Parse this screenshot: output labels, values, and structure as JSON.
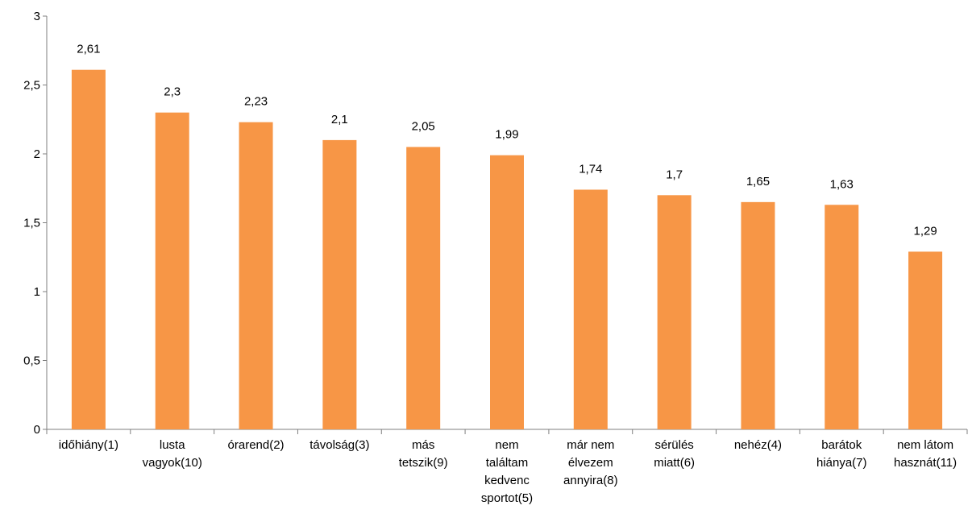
{
  "chart_data": {
    "type": "bar",
    "title": "",
    "xlabel": "",
    "ylabel": "",
    "categories": [
      [
        "időhiány(1)"
      ],
      [
        "lusta",
        "vagyok(10)"
      ],
      [
        "órarend(2)"
      ],
      [
        "távolság(3)"
      ],
      [
        "más",
        "tetszik(9)"
      ],
      [
        "nem",
        "találtam",
        "kedvenc",
        "sportot(5)"
      ],
      [
        "már nem",
        "élvezem",
        "annyira(8)"
      ],
      [
        "sérülés",
        "miatt(6)"
      ],
      [
        "nehéz(4)"
      ],
      [
        "barátok",
        "hiánya(7)"
      ],
      [
        "nem látom",
        "hasznát(11)"
      ]
    ],
    "values": [
      2.61,
      2.3,
      2.23,
      2.1,
      2.05,
      1.99,
      1.74,
      1.7,
      1.65,
      1.63,
      1.29
    ],
    "data_labels": [
      "2,61",
      "2,3",
      "2,23",
      "2,1",
      "2,05",
      "1,99",
      "1,74",
      "1,7",
      "1,65",
      "1,63",
      "1,29"
    ],
    "ylim": [
      0,
      3
    ],
    "y_ticks": [
      0,
      0.5,
      1,
      1.5,
      2,
      2.5,
      3
    ],
    "y_tick_labels": [
      "0",
      "0,5",
      "1",
      "1,5",
      "2",
      "2,5",
      "3"
    ],
    "bar_color": "#F79646",
    "axis_color": "#7F7F7F",
    "grid": false,
    "legend": false
  }
}
